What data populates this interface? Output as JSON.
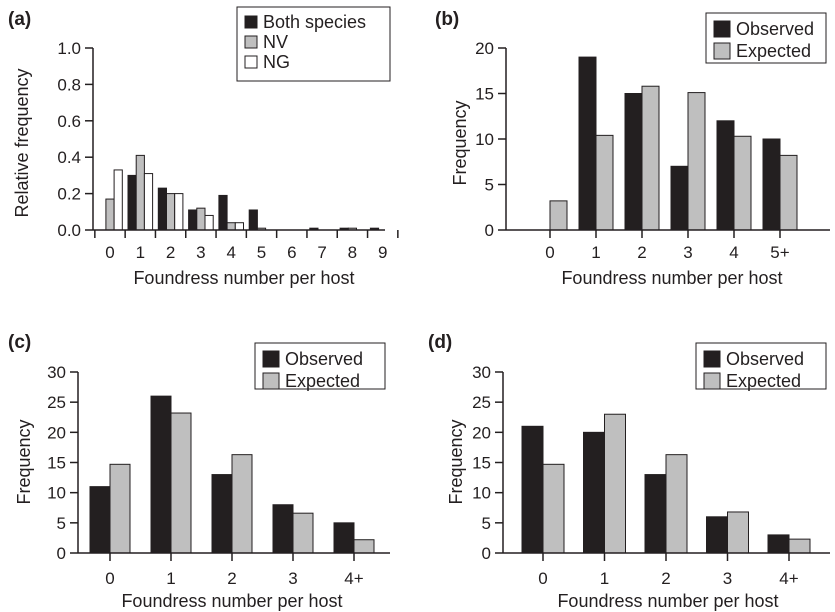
{
  "colors": {
    "dark": "#231f20",
    "grey": "#bfbfbf",
    "white": "#ffffff"
  },
  "chart_data": [
    {
      "panel": "(a)",
      "type": "bar",
      "xlabel": "Foundress number per host",
      "ylabel": "Relative frequency",
      "ylim": [
        0,
        1.0
      ],
      "yticks": [
        "0.0",
        "0.2",
        "0.4",
        "0.6",
        "0.8",
        "1.0"
      ],
      "categories": [
        "0",
        "1",
        "2",
        "3",
        "4",
        "5",
        "6",
        "7",
        "8",
        "9"
      ],
      "legend_position": "top-right",
      "series": [
        {
          "name": "Both species",
          "color": "dark",
          "values": [
            0.0,
            0.3,
            0.23,
            0.11,
            0.19,
            0.11,
            0.0,
            0.01,
            0.01,
            0.01
          ]
        },
        {
          "name": "NV",
          "color": "grey",
          "values": [
            0.17,
            0.41,
            0.2,
            0.12,
            0.04,
            0.01,
            0.0,
            0.0,
            0.01,
            0.0
          ]
        },
        {
          "name": "NG",
          "color": "white",
          "values": [
            0.33,
            0.31,
            0.2,
            0.08,
            0.04,
            0.0,
            0.0,
            0.0,
            0.0,
            0.0
          ]
        }
      ]
    },
    {
      "panel": "(b)",
      "type": "bar",
      "xlabel": "Foundress number per host",
      "ylabel": "Frequency",
      "ylim": [
        0,
        20
      ],
      "yticks": [
        "0",
        "5",
        "10",
        "15",
        "20"
      ],
      "categories": [
        "0",
        "1",
        "2",
        "3",
        "4",
        "5+"
      ],
      "legend_position": "top-right",
      "series": [
        {
          "name": "Observed",
          "color": "dark",
          "values": [
            0,
            19,
            15,
            7,
            12,
            10
          ]
        },
        {
          "name": "Expected",
          "color": "grey",
          "values": [
            3.2,
            10.4,
            15.8,
            15.1,
            10.3,
            8.2
          ]
        }
      ]
    },
    {
      "panel": "(c)",
      "type": "bar",
      "xlabel": "Foundress number per host",
      "ylabel": "Frequency",
      "ylim": [
        0,
        30
      ],
      "yticks": [
        "0",
        "5",
        "10",
        "15",
        "20",
        "25",
        "30"
      ],
      "categories": [
        "0",
        "1",
        "2",
        "3",
        "4+"
      ],
      "legend_position": "top-right",
      "series": [
        {
          "name": "Observed",
          "color": "dark",
          "values": [
            11,
            26,
            13,
            8,
            5
          ]
        },
        {
          "name": "Expected",
          "color": "grey",
          "values": [
            14.7,
            23.2,
            16.3,
            6.6,
            2.2
          ]
        }
      ]
    },
    {
      "panel": "(d)",
      "type": "bar",
      "xlabel": "Foundress number per host",
      "ylabel": "Frequency",
      "ylim": [
        0,
        30
      ],
      "yticks": [
        "0",
        "5",
        "10",
        "15",
        "20",
        "25",
        "30"
      ],
      "categories": [
        "0",
        "1",
        "2",
        "3",
        "4+"
      ],
      "legend_position": "top-right",
      "series": [
        {
          "name": "Observed",
          "color": "dark",
          "values": [
            21,
            20,
            13,
            6,
            3
          ]
        },
        {
          "name": "Expected",
          "color": "grey",
          "values": [
            14.7,
            23.0,
            16.3,
            6.8,
            2.3
          ]
        }
      ]
    }
  ]
}
